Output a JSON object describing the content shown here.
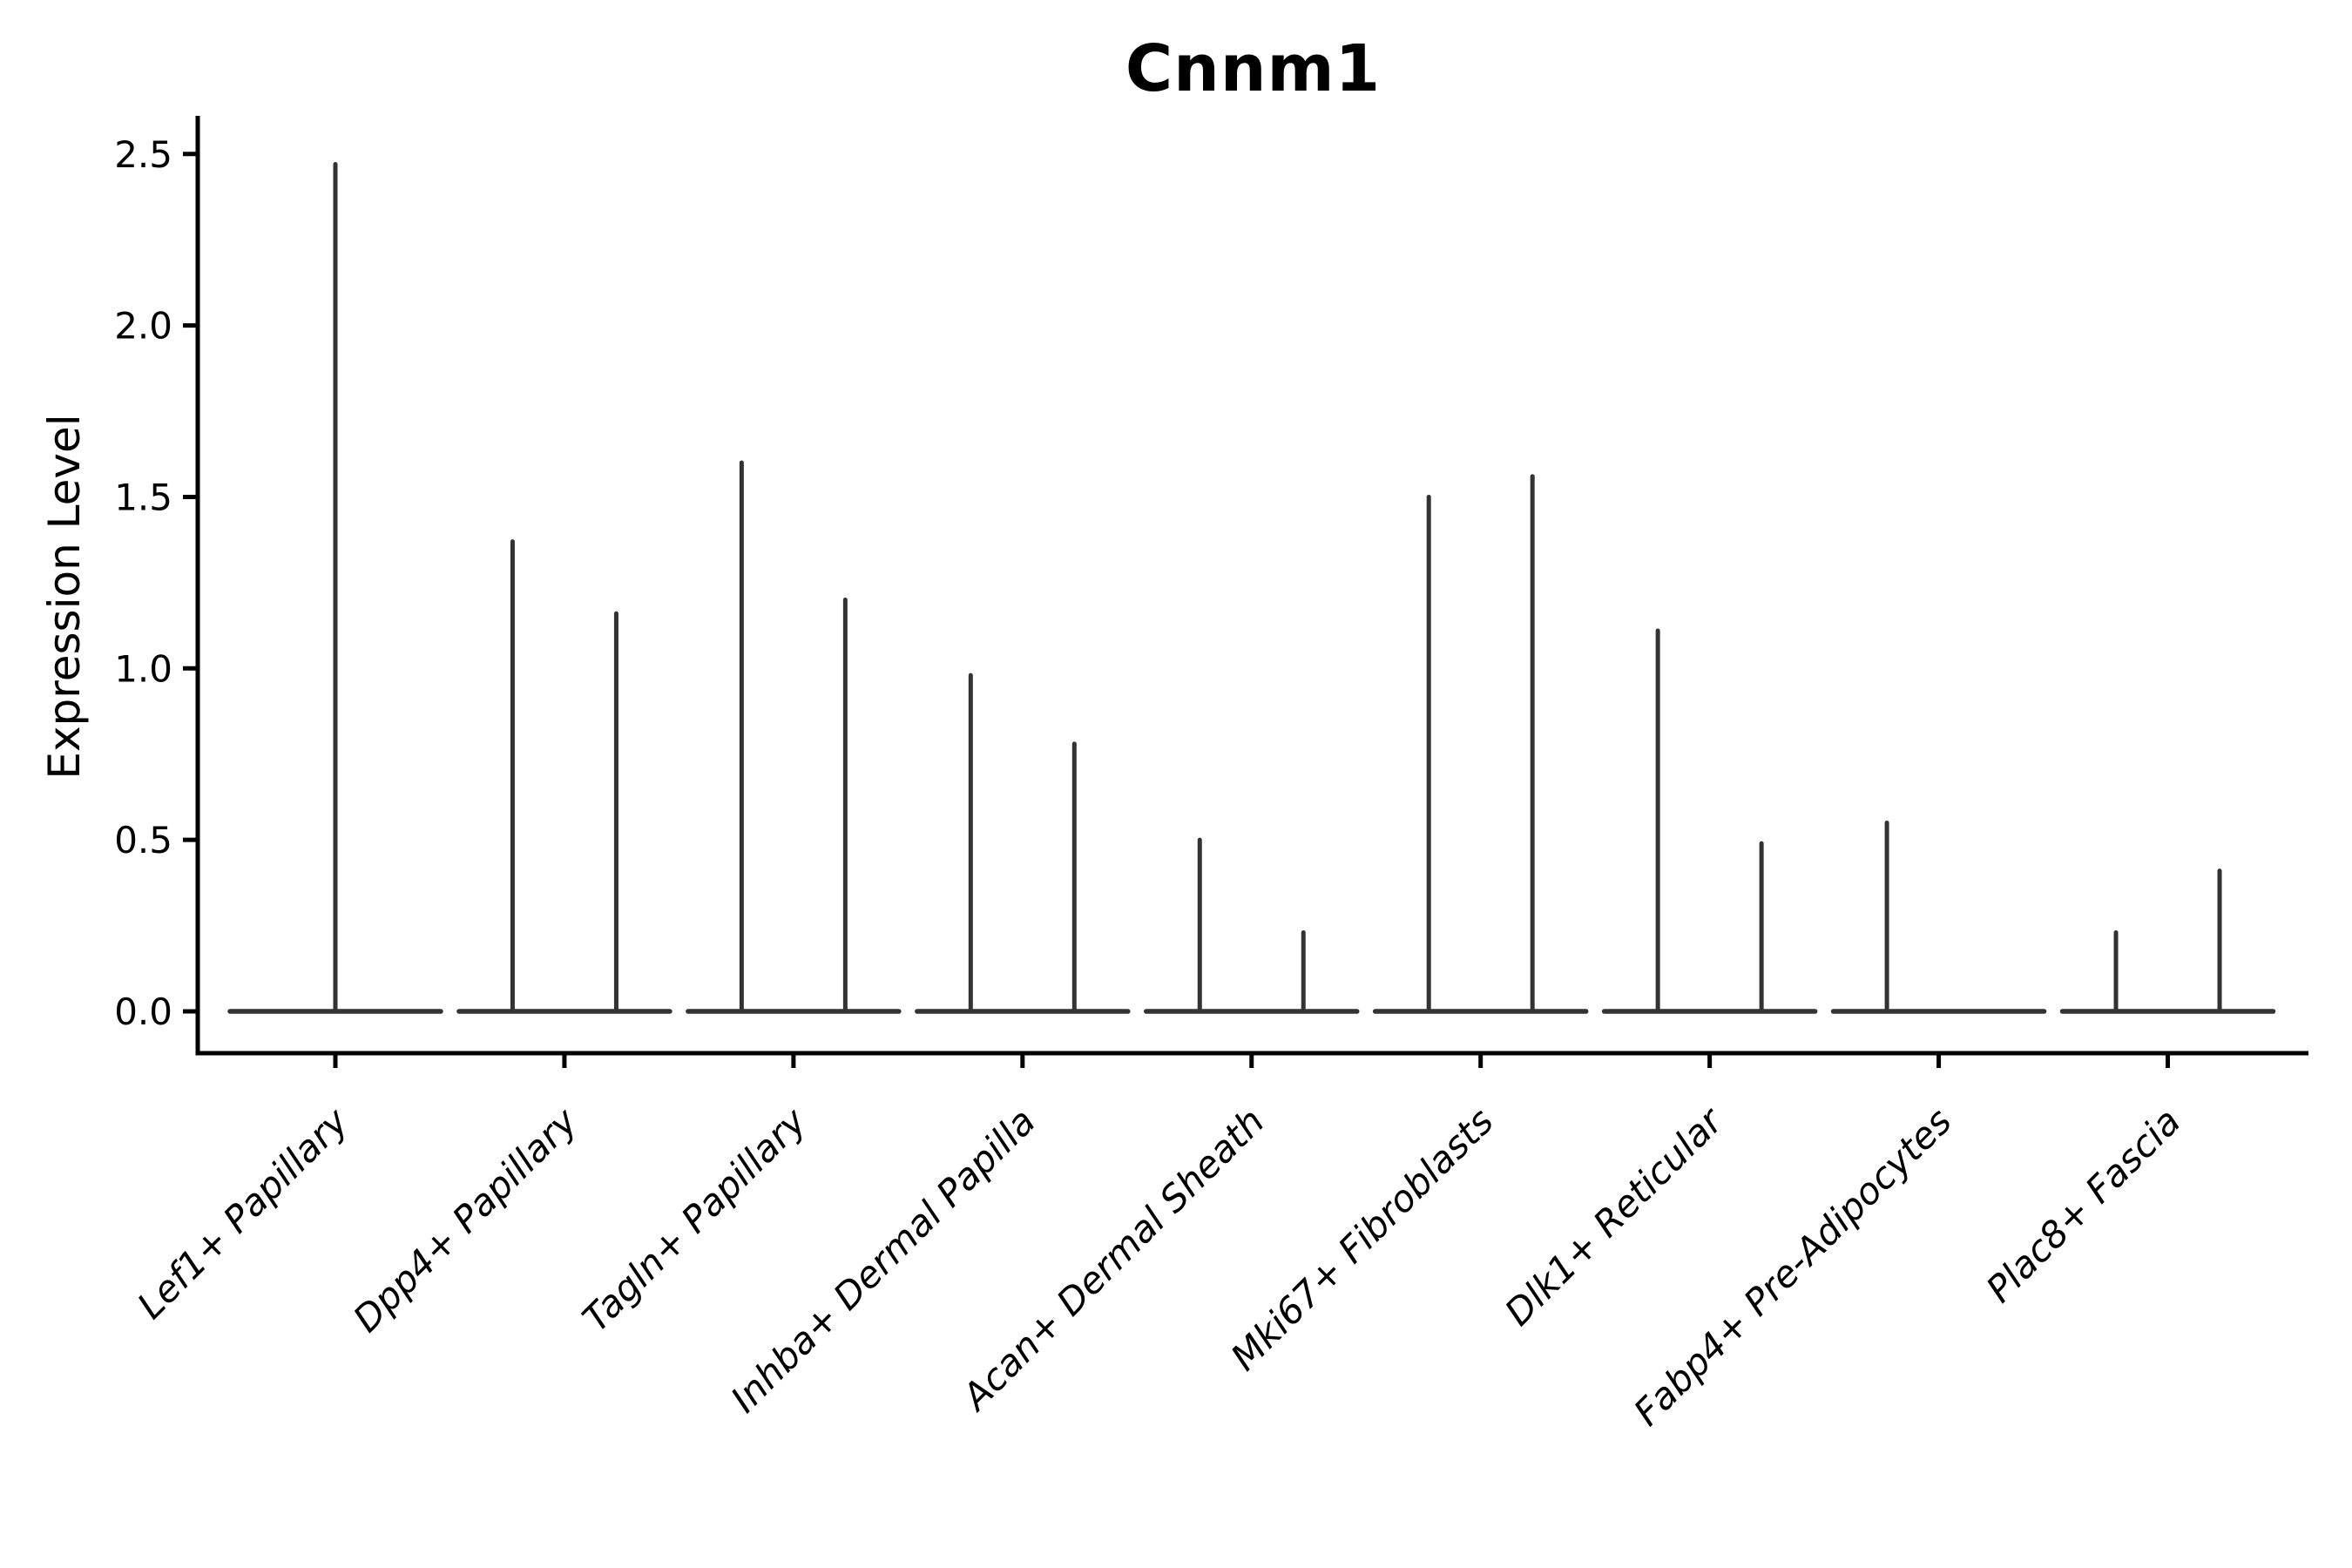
{
  "chart_data": {
    "type": "violin",
    "title": "Cnnm1",
    "ylabel": "Expression Level",
    "xlabel": "",
    "y_ticks": [
      "0.0",
      "0.5",
      "1.0",
      "1.5",
      "2.0",
      "2.5"
    ],
    "ylim": [
      0.0,
      2.5
    ],
    "grid": "off",
    "legend": "none",
    "baseline_value": 0.0,
    "categories": [
      {
        "label": "Lef1+ Papillary",
        "violins": [
          {
            "pos": "center",
            "max": 2.47
          }
        ]
      },
      {
        "label": "Dpp4+ Papillary",
        "violins": [
          {
            "pos": "left",
            "max": 1.37
          },
          {
            "pos": "right",
            "max": 1.16
          }
        ]
      },
      {
        "label": "Tagln+ Papillary",
        "violins": [
          {
            "pos": "left",
            "max": 1.6
          },
          {
            "pos": "right",
            "max": 1.2
          }
        ]
      },
      {
        "label": "Inhba+ Dermal Papilla",
        "violins": [
          {
            "pos": "left",
            "max": 0.98
          },
          {
            "pos": "right",
            "max": 0.78
          }
        ]
      },
      {
        "label": "Acan+ Dermal Sheath",
        "violins": [
          {
            "pos": "left",
            "max": 0.5
          },
          {
            "pos": "right",
            "max": 0.23
          }
        ]
      },
      {
        "label": "Mki67+ Fibroblasts",
        "violins": [
          {
            "pos": "left",
            "max": 1.5
          },
          {
            "pos": "right",
            "max": 1.56
          }
        ]
      },
      {
        "label": "Dlk1+ Reticular",
        "violins": [
          {
            "pos": "left",
            "max": 1.11
          },
          {
            "pos": "right",
            "max": 0.49
          }
        ]
      },
      {
        "label": "Fabp4+ Pre-Adipocytes",
        "violins": [
          {
            "pos": "left",
            "max": 0.55
          }
        ]
      },
      {
        "label": "Plac8+ Fascia",
        "violins": [
          {
            "pos": "left",
            "max": 0.23
          },
          {
            "pos": "right",
            "max": 0.41
          }
        ]
      }
    ],
    "colors": {
      "violin": "#333333",
      "axis": "#000000",
      "text": "#000000",
      "background": "#ffffff"
    }
  }
}
